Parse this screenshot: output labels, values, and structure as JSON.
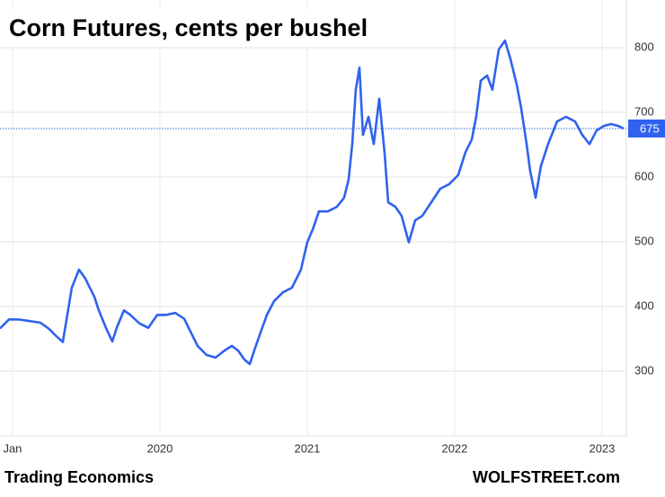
{
  "chart_data": {
    "type": "line",
    "title": "Corn Futures, cents per bushel",
    "source": "Trading Economics",
    "credit": "WOLFSTREET.com",
    "xlim": [
      2018.915,
      2023.165
    ],
    "xticks": [
      {
        "value": 2019,
        "label": "Jan"
      },
      2020,
      2021,
      2022,
      2023
    ],
    "ylim": [
      200,
      870
    ],
    "yticks": [
      300,
      400,
      500,
      600,
      700,
      800
    ],
    "grid": true,
    "last_value": 675,
    "series": [
      {
        "name": "Corn",
        "color": "#2f62ee",
        "x": [
          2018.915,
          2018.976,
          2019.037,
          2019.098,
          2019.189,
          2019.25,
          2019.293,
          2019.341,
          2019.372,
          2019.402,
          2019.451,
          2019.494,
          2019.524,
          2019.555,
          2019.585,
          2019.634,
          2019.677,
          2019.707,
          2019.756,
          2019.799,
          2019.86,
          2019.921,
          2019.982,
          2020.043,
          2020.104,
          2020.165,
          2020.195,
          2020.256,
          2020.317,
          2020.378,
          2020.439,
          2020.488,
          2020.53,
          2020.573,
          2020.61,
          2020.64,
          2020.683,
          2020.726,
          2020.774,
          2020.835,
          2020.896,
          2020.957,
          2021.0,
          2021.037,
          2021.079,
          2021.14,
          2021.201,
          2021.25,
          2021.28,
          2021.305,
          2021.329,
          2021.354,
          2021.378,
          2021.415,
          2021.451,
          2021.488,
          2021.524,
          2021.549,
          2021.598,
          2021.64,
          2021.689,
          2021.732,
          2021.78,
          2021.841,
          2021.902,
          2021.963,
          2022.024,
          2022.073,
          2022.116,
          2022.146,
          2022.177,
          2022.22,
          2022.256,
          2022.299,
          2022.341,
          2022.378,
          2022.421,
          2022.451,
          2022.488,
          2022.512,
          2022.549,
          2022.585,
          2022.634,
          2022.695,
          2022.756,
          2022.817,
          2022.866,
          2022.915,
          2022.963,
          2023.012,
          2023.061,
          2023.11,
          2023.146
        ],
        "values": [
          366,
          380,
          380,
          378,
          375,
          365,
          355,
          345,
          387,
          429,
          457,
          443,
          429,
          415,
          394,
          367,
          346,
          367,
          394,
          387,
          374,
          367,
          387,
          387,
          390,
          381,
          367,
          339,
          325,
          321,
          332,
          339,
          332,
          318,
          311,
          332,
          360,
          387,
          408,
          422,
          429,
          457,
          499,
          519,
          547,
          547,
          554,
          568,
          596,
          651,
          735,
          769,
          665,
          693,
          651,
          721,
          638,
          561,
          554,
          540,
          499,
          533,
          540,
          561,
          582,
          589,
          603,
          638,
          658,
          693,
          749,
          757,
          735,
          797,
          811,
          783,
          743,
          707,
          651,
          610,
          568,
          617,
          651,
          686,
          693,
          686,
          665,
          651,
          672,
          679,
          682,
          679,
          675
        ]
      }
    ]
  }
}
